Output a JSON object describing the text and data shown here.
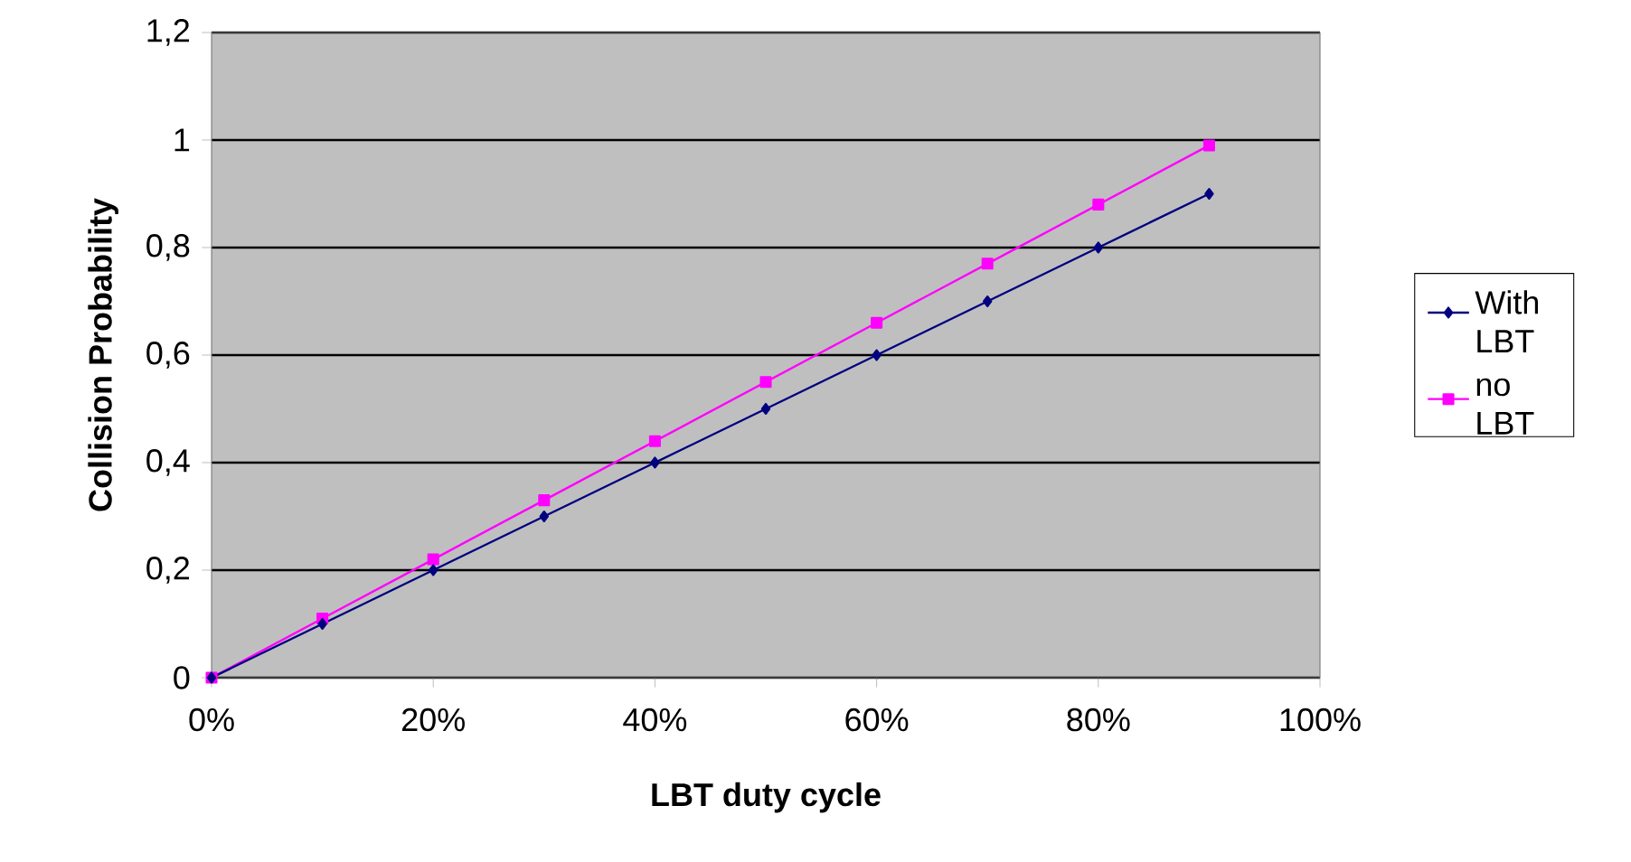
{
  "chart_data": {
    "type": "line",
    "xlabel": "LBT duty cycle",
    "ylabel": "Collision Probability",
    "x": [
      0,
      10,
      20,
      30,
      40,
      50,
      60,
      70,
      80,
      90
    ],
    "series": [
      {
        "name": "With LBT",
        "color": "#000080",
        "marker": "diamond",
        "values": [
          0,
          0.1,
          0.2,
          0.3,
          0.4,
          0.5,
          0.6,
          0.7,
          0.8,
          0.9
        ]
      },
      {
        "name": "no LBT",
        "color": "#ff00ff",
        "marker": "square",
        "values": [
          0,
          0.11,
          0.22,
          0.33,
          0.44,
          0.55,
          0.66,
          0.77,
          0.88,
          0.99
        ]
      }
    ],
    "xlim": [
      0,
      100
    ],
    "xticks": [
      {
        "value": 0,
        "label": "0%"
      },
      {
        "value": 20,
        "label": "20%"
      },
      {
        "value": 40,
        "label": "40%"
      },
      {
        "value": 60,
        "label": "60%"
      },
      {
        "value": 80,
        "label": "80%"
      },
      {
        "value": 100,
        "label": "100%"
      }
    ],
    "ylim": [
      0,
      1.2
    ],
    "yticks": [
      0,
      {
        "value": 0.2,
        "label": "0,2"
      },
      {
        "value": 0.4,
        "label": "0,4"
      },
      {
        "value": 0.6,
        "label": "0,6"
      },
      {
        "value": 0.8,
        "label": "0,8"
      },
      1,
      {
        "value": 1.2,
        "label": "1,2"
      }
    ],
    "grid": "y",
    "legend": "right",
    "line_style": "solid"
  }
}
